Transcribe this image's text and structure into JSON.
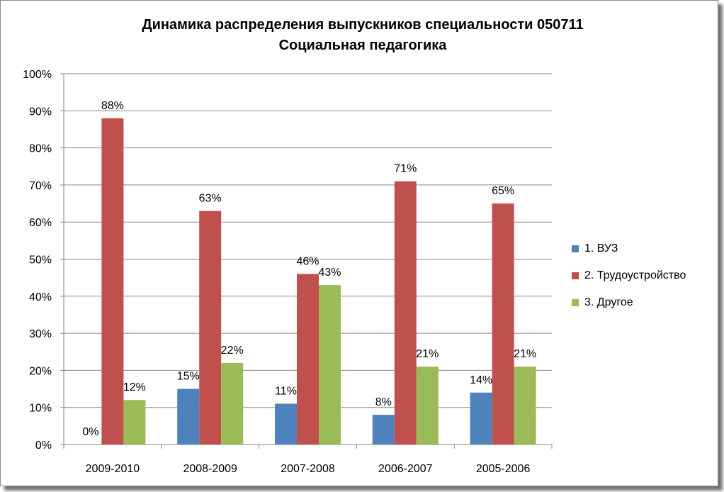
{
  "chart_data": {
    "type": "bar",
    "title": "Динамика распределения выпускников специальности 050711",
    "subtitle": "Социальная педагогика",
    "categories": [
      "2009-2010",
      "2008-2009",
      "2007-2008",
      "2006-2007",
      "2005-2006"
    ],
    "series": [
      {
        "name": "1. ВУЗ",
        "color": "#4f81bd",
        "values": [
          0,
          15,
          11,
          8,
          14
        ],
        "labels": [
          "0%",
          "15%",
          "11%",
          "8%",
          "14%"
        ]
      },
      {
        "name": "2. Трудоустройство",
        "color": "#c0504d",
        "values": [
          88,
          63,
          46,
          71,
          65
        ],
        "labels": [
          "88%",
          "63%",
          "46%",
          "71%",
          "65%"
        ]
      },
      {
        "name": "3. Другое",
        "color": "#9bbb59",
        "values": [
          12,
          22,
          43,
          21,
          21
        ],
        "labels": [
          "12%",
          "22%",
          "43%",
          "21%",
          "21%"
        ]
      }
    ],
    "y_ticks": [
      "0%",
      "10%",
      "20%",
      "30%",
      "40%",
      "50%",
      "60%",
      "70%",
      "80%",
      "90%",
      "100%"
    ],
    "ylim": [
      0,
      100
    ],
    "grid": true,
    "legend_position": "right"
  }
}
